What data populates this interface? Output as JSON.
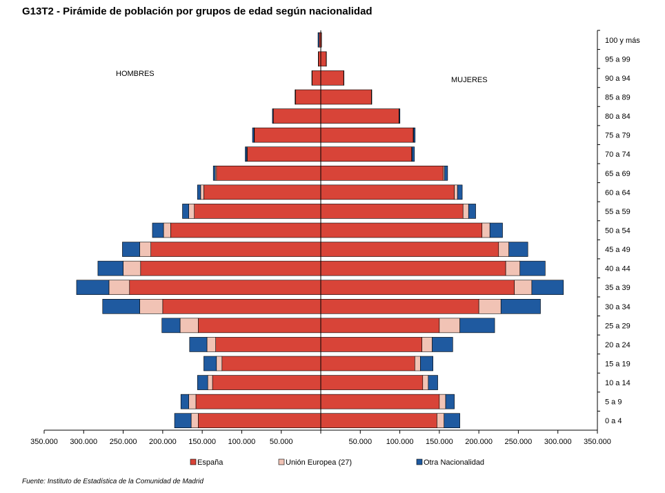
{
  "title": "G13T2 - Pirámide de población por grupos de edad según nacionalidad",
  "source": "Fuente: Instituto de Estadística de la Comunidad de Madrid",
  "chart_data": {
    "type": "bar",
    "orientation": "horizontal-population-pyramid",
    "side_labels": {
      "left": "HOMBRES",
      "right": "MUJERES"
    },
    "categories": [
      "0 a 4",
      "5 a 9",
      "10 a 14",
      "15 a 19",
      "20 a 24",
      "25 a 29",
      "30 a 34",
      "35 a 39",
      "40 a 44",
      "45 a 49",
      "50 a 54",
      "55 a 59",
      "60 a 64",
      "65 a 69",
      "70 a 74",
      "75 a 79",
      "80 a 84",
      "85 a 89",
      "90 a 94",
      "95 a 99",
      "100 y más"
    ],
    "xlim": [
      -350000,
      350000
    ],
    "xticks": [
      -350000,
      -300000,
      -250000,
      -200000,
      -150000,
      -100000,
      -50000,
      0,
      50000,
      100000,
      150000,
      200000,
      250000,
      300000,
      350000
    ],
    "xtick_labels": [
      "350.000",
      "300.000",
      "250.000",
      "200.000",
      "150.000",
      "100.000",
      "50.000",
      "",
      "50.000",
      "100.000",
      "150.000",
      "200.000",
      "250.000",
      "300.000",
      "350.000"
    ],
    "legend_position": "bottom",
    "series": [
      {
        "name": "España",
        "color": "#d84438",
        "hombres": [
          155000,
          158000,
          137000,
          125000,
          133000,
          155000,
          200000,
          242000,
          228000,
          215000,
          190000,
          160000,
          148000,
          132000,
          93000,
          84000,
          60000,
          32000,
          11000,
          3000,
          2000
        ],
        "mujeres": [
          147000,
          150000,
          129000,
          119000,
          128000,
          150000,
          200000,
          245000,
          234000,
          225000,
          204000,
          180000,
          169000,
          155000,
          115000,
          117000,
          99000,
          64000,
          29000,
          7000,
          1000
        ]
      },
      {
        "name": "Unión Europea (27)",
        "color": "#f1c3b5",
        "hombres": [
          9000,
          9000,
          6000,
          7000,
          11000,
          23000,
          29000,
          26000,
          22000,
          14000,
          9000,
          7000,
          4000,
          1500,
          600,
          400,
          200,
          100,
          50,
          20,
          0
        ],
        "mujeres": [
          9000,
          8000,
          7000,
          7000,
          13000,
          26000,
          28000,
          22000,
          18000,
          13000,
          10000,
          7000,
          4000,
          1500,
          500,
          400,
          200,
          100,
          50,
          20,
          0
        ]
      },
      {
        "name": "Otra Nacionalidad",
        "color": "#1f5aa0",
        "hombres": [
          21000,
          10000,
          13000,
          16000,
          22000,
          23000,
          47000,
          41000,
          32000,
          22000,
          14000,
          8000,
          4000,
          2500,
          2000,
          2000,
          1000,
          500,
          300,
          200,
          1500
        ],
        "mujeres": [
          20000,
          11000,
          12000,
          16000,
          26000,
          44000,
          50000,
          40000,
          32000,
          24000,
          16000,
          9000,
          6000,
          4000,
          3000,
          2000,
          1000,
          500,
          300,
          200,
          0
        ]
      }
    ]
  }
}
